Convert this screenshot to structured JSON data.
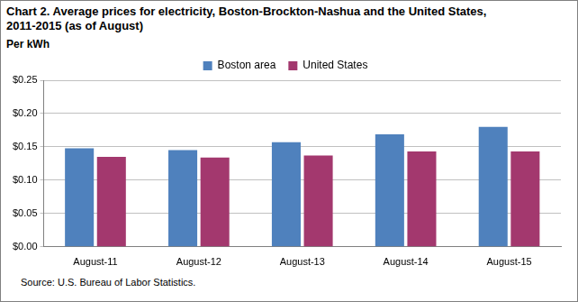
{
  "chart_data": {
    "type": "bar",
    "title": [
      "Chart 2. Average prices for electricity, Boston-Brockton-Nashua  and the United  States,",
      "2011-2015 (as of August)"
    ],
    "y_label": "Per kWh",
    "source": "Source: U.S. Bureau of Labor Statistics.",
    "categories": [
      "August-11",
      "August-12",
      "August-13",
      "August-14",
      "August-15"
    ],
    "series": [
      {
        "name": "Boston area",
        "color": "#4f81bd",
        "values": [
          0.148,
          0.145,
          0.157,
          0.169,
          0.18
        ]
      },
      {
        "name": "United States",
        "color": "#a3386e",
        "values": [
          0.135,
          0.134,
          0.137,
          0.143,
          0.143
        ]
      }
    ],
    "ylim": [
      0,
      0.25
    ],
    "yticks": [
      {
        "value": 0,
        "label": "$0.00"
      },
      {
        "value": 0.05,
        "label": "$0.05"
      },
      {
        "value": 0.1,
        "label": "$0.10"
      },
      {
        "value": 0.15,
        "label": "$0.15"
      },
      {
        "value": 0.2,
        "label": "$0.20"
      },
      {
        "value": 0.25,
        "label": "$0.25"
      }
    ],
    "grid": true,
    "legend": "top"
  }
}
